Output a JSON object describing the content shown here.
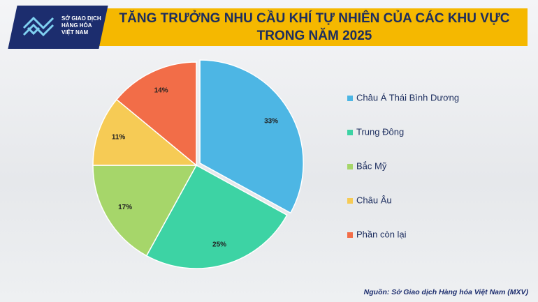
{
  "brand": [
    "SỞ GIAO DỊCH",
    "HÀNG HÓA",
    "VIỆT NAM"
  ],
  "chart_data": {
    "type": "pie",
    "title": "TĂNG TRƯỞNG NHU CẦU KHÍ TỰ NHIÊN CỦA CÁC KHU VỰC TRONG NĂM 2025",
    "categories": [
      "Châu Á Thái Bình Dương",
      "Trung Đông",
      "Bắc Mỹ",
      "Châu Âu",
      "Phần còn lại"
    ],
    "values": [
      33,
      25,
      17,
      11,
      14
    ],
    "value_labels": [
      "33%",
      "25%",
      "17%",
      "11%",
      "14%"
    ],
    "colors": [
      "#4db6e4",
      "#3dd3a4",
      "#a6d66a",
      "#f6cb55",
      "#f26d48"
    ],
    "legend": "right",
    "source": "Nguồn: Sở Giao dịch Hàng hóa Việt Nam (MXV)"
  }
}
